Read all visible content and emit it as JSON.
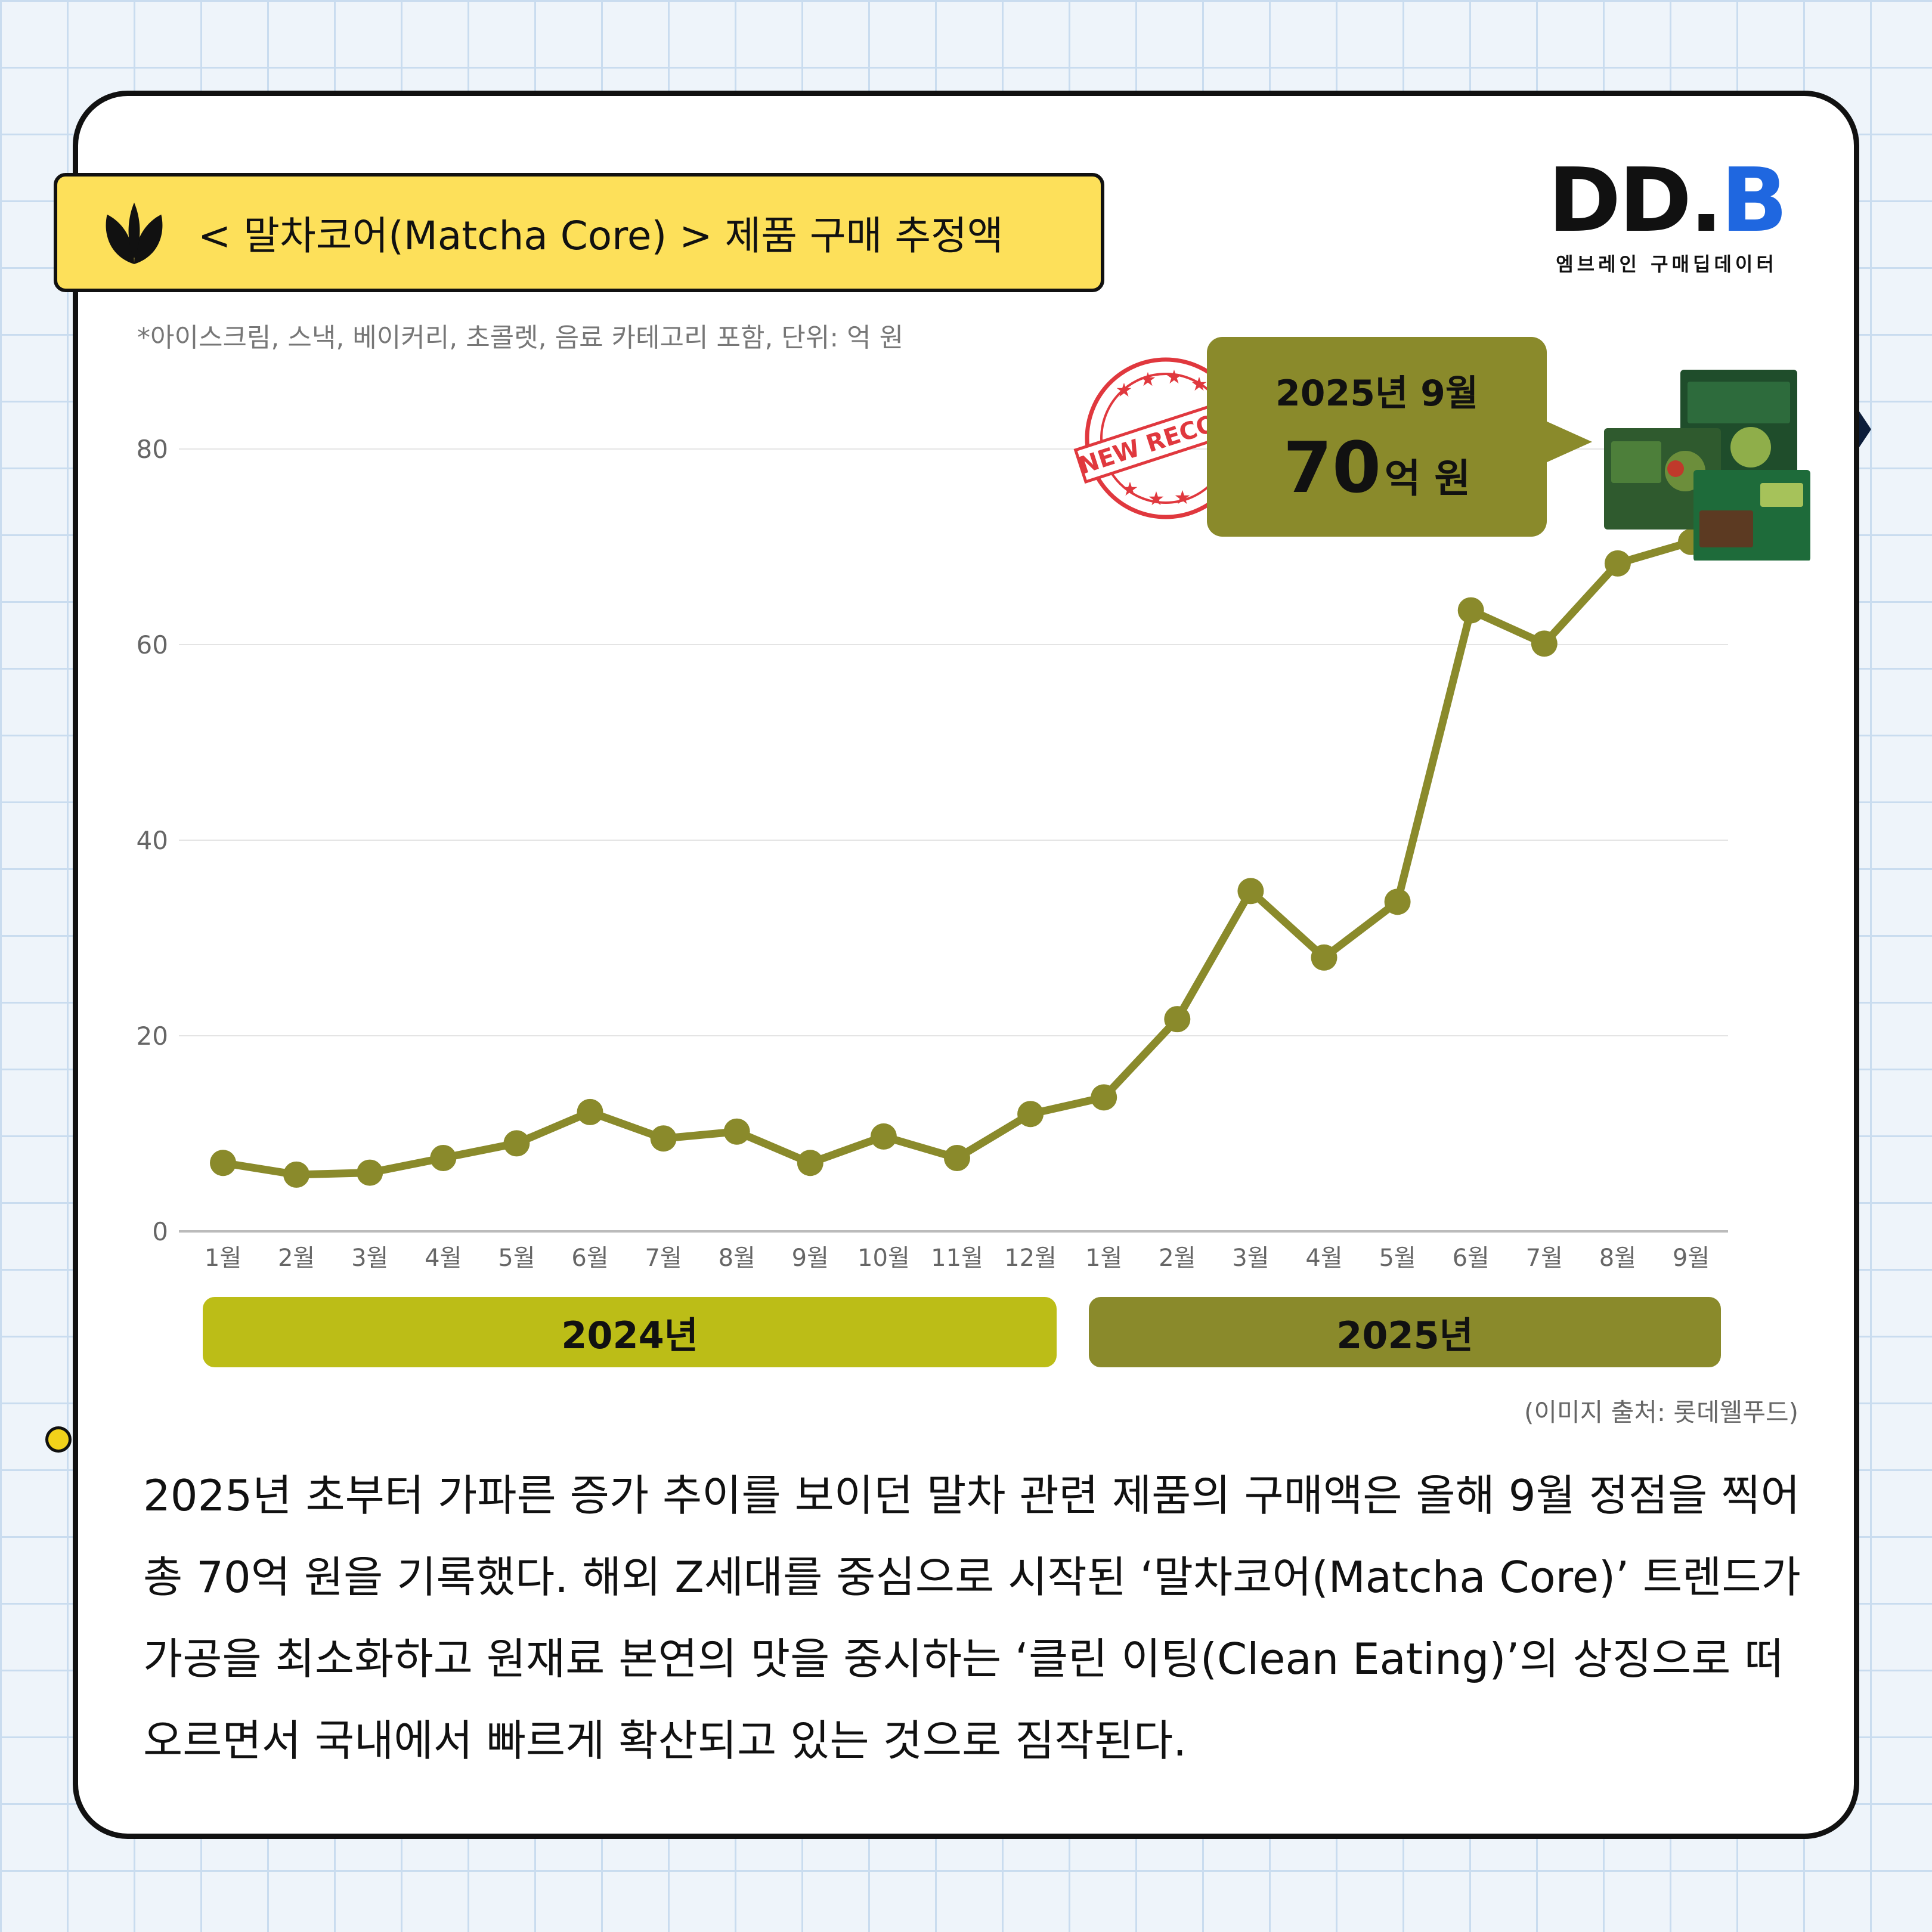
{
  "title": {
    "text": "< 말차코어(Matcha Core) > 제품 구매 추정액",
    "subtitle": "*아이스크림, 스낵, 베이커리, 초콜렛, 음료 카테고리 포함, 단위: 억 원"
  },
  "logo": {
    "mark_dd": "DD.",
    "mark_b": "B",
    "subtitle": "엠브레인 구매딥데이터"
  },
  "callout": {
    "date": "2025년 9월",
    "value": "70",
    "unit": "억 원",
    "stamp_text": "NEW RECORD"
  },
  "year_bars": {
    "y2024": "2024년",
    "y2025": "2025년"
  },
  "credit": "(이미지 출처: 롯데웰푸드)",
  "paragraph": "2025년 초부터 가파른 증가 추이를 보이던 말차 관련 제품의 구매액은 올해 9월 정점을 찍어 총 70억 원을 기록했다. 해외 Z세대를 중심으로 시작된 ‘말차코어(Matcha Core)’ 트렌드가 가공을 최소화하고 원재료 본연의 맛을 중시하는 ‘클린 이팅(Clean Eating)’의 상징으로 떠오르면서 국내에서 빠르게 확산되고 있는 것으로 짐작된다.",
  "colors": {
    "line": "#8a8a2b",
    "bar2024": "#bcbd17",
    "bar2025": "#8a8a2b",
    "title_bg": "#fde05a",
    "logo_blue": "#1f67e0"
  },
  "chart_data": {
    "type": "line",
    "categories": [
      "1월",
      "2월",
      "3월",
      "4월",
      "5월",
      "6월",
      "7월",
      "8월",
      "9월",
      "10월",
      "11월",
      "12월",
      "1월",
      "2월",
      "3월",
      "4월",
      "5월",
      "6월",
      "7월",
      "8월",
      "9월"
    ],
    "series": [
      {
        "values": [
          7.0,
          5.8,
          6.0,
          7.5,
          9.0,
          12.2,
          9.5,
          10.2,
          7.0,
          9.7,
          7.5,
          12.0,
          13.7,
          21.7,
          34.8,
          28.0,
          33.7,
          63.5,
          60.1,
          68.3,
          70.5
        ]
      }
    ],
    "yticks": [
      0,
      20,
      40,
      60,
      80
    ],
    "ylim": [
      0,
      80
    ],
    "grid": true,
    "legend": "none",
    "year_groups": [
      {
        "label": "2024년",
        "range": [
          0,
          11
        ]
      },
      {
        "label": "2025년",
        "range": [
          12,
          20
        ]
      }
    ]
  }
}
